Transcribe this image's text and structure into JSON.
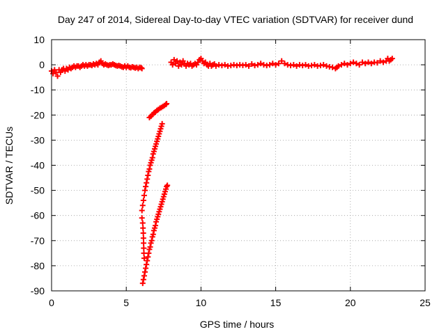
{
  "chart_data": {
    "type": "scatter",
    "title": "Day 247 of 2014, Sidereal Day-to-day VTEC variation (SDTVAR) for receiver dund",
    "xlabel": "GPS time / hours",
    "ylabel": "SDTVAR / TECUs",
    "xlim": [
      0,
      25
    ],
    "ylim": [
      -90,
      10
    ],
    "xticks": [
      "0",
      "5",
      "10",
      "15",
      "20",
      "25"
    ],
    "yticks": [
      "10",
      "0",
      "-10",
      "-20",
      "-30",
      "-40",
      "-50",
      "-60",
      "-70",
      "-80",
      "-90"
    ],
    "grid": true,
    "legend": "none",
    "marker": "plus",
    "marker_color": "#ff0000",
    "series": [
      {
        "values": [
          [
            0.0,
            -2.5
          ],
          [
            0.1,
            -3.5
          ],
          [
            0.2,
            -2.0
          ],
          [
            0.3,
            -3.0
          ],
          [
            0.4,
            -4.5
          ],
          [
            0.5,
            -2.0
          ],
          [
            0.6,
            -3.0
          ],
          [
            0.7,
            -2.0
          ],
          [
            0.8,
            -1.5
          ],
          [
            0.9,
            -2.5
          ],
          [
            1.0,
            -1.5
          ],
          [
            1.1,
            -2.0
          ],
          [
            1.2,
            -1.0
          ],
          [
            1.3,
            -1.5
          ],
          [
            1.4,
            -1.0
          ],
          [
            1.5,
            -0.5
          ],
          [
            1.6,
            -1.0
          ],
          [
            1.7,
            -0.5
          ],
          [
            1.8,
            -0.5
          ],
          [
            1.9,
            -1.0
          ],
          [
            2.0,
            -0.5
          ],
          [
            2.1,
            0.0
          ],
          [
            2.2,
            -0.5
          ],
          [
            2.3,
            0.0
          ],
          [
            2.4,
            -0.5
          ],
          [
            2.5,
            0.0
          ],
          [
            2.6,
            0.0
          ],
          [
            2.7,
            -0.3
          ],
          [
            2.8,
            0.3
          ],
          [
            2.9,
            0.0
          ],
          [
            3.0,
            0.5
          ],
          [
            3.1,
            0.0
          ],
          [
            3.2,
            1.0
          ],
          [
            3.3,
            1.5
          ],
          [
            3.4,
            0.5
          ],
          [
            3.5,
            0.0
          ],
          [
            3.6,
            0.3
          ],
          [
            3.7,
            0.0
          ],
          [
            3.8,
            -0.3
          ],
          [
            3.9,
            0.0
          ],
          [
            4.0,
            0.0
          ],
          [
            4.1,
            0.3
          ],
          [
            4.2,
            0.0
          ],
          [
            4.3,
            -0.3
          ],
          [
            4.4,
            -0.5
          ],
          [
            4.5,
            -0.3
          ],
          [
            4.6,
            -0.5
          ],
          [
            4.7,
            -0.8
          ],
          [
            4.8,
            -1.0
          ],
          [
            4.9,
            -0.5
          ],
          [
            5.0,
            -1.0
          ],
          [
            5.1,
            -0.5
          ],
          [
            5.2,
            -1.0
          ],
          [
            5.3,
            -1.2
          ],
          [
            5.4,
            -0.8
          ],
          [
            5.5,
            -1.0
          ],
          [
            5.6,
            -1.3
          ],
          [
            5.7,
            -1.0
          ],
          [
            5.8,
            -1.5
          ],
          [
            5.9,
            -1.0
          ],
          [
            6.0,
            -1.2
          ],
          [
            6.05,
            -1.5
          ]
        ]
      },
      {
        "values": [
          [
            6.55,
            -21.0
          ],
          [
            6.65,
            -20.5
          ],
          [
            6.75,
            -19.8
          ],
          [
            6.85,
            -19.2
          ],
          [
            6.95,
            -18.8
          ],
          [
            7.05,
            -18.2
          ],
          [
            7.15,
            -17.8
          ],
          [
            7.25,
            -17.3
          ],
          [
            7.35,
            -17.0
          ],
          [
            7.45,
            -16.6
          ],
          [
            7.55,
            -16.2
          ],
          [
            7.65,
            -15.8
          ],
          [
            7.7,
            -15.5
          ]
        ]
      },
      {
        "values": [
          [
            6.05,
            -58.0
          ],
          [
            6.1,
            -56.0
          ],
          [
            6.15,
            -54.0
          ],
          [
            6.2,
            -52.0
          ],
          [
            6.25,
            -50.0
          ],
          [
            6.3,
            -48.5
          ],
          [
            6.35,
            -47.0
          ],
          [
            6.4,
            -45.5
          ],
          [
            6.45,
            -44.0
          ],
          [
            6.5,
            -42.5
          ],
          [
            6.55,
            -41.5
          ],
          [
            6.6,
            -40.0
          ],
          [
            6.65,
            -39.0
          ],
          [
            6.7,
            -38.0
          ],
          [
            6.75,
            -37.0
          ],
          [
            6.8,
            -35.5
          ],
          [
            6.85,
            -34.5
          ],
          [
            6.9,
            -33.5
          ],
          [
            6.95,
            -32.5
          ],
          [
            7.0,
            -31.5
          ],
          [
            7.05,
            -30.5
          ],
          [
            7.1,
            -29.5
          ],
          [
            7.15,
            -28.5
          ],
          [
            7.2,
            -27.5
          ],
          [
            7.25,
            -26.5
          ],
          [
            7.3,
            -25.5
          ],
          [
            7.35,
            -24.5
          ],
          [
            7.4,
            -23.5
          ]
        ]
      },
      {
        "values": [
          [
            6.05,
            -61.0
          ],
          [
            6.1,
            -63.0
          ],
          [
            6.12,
            -65.0
          ],
          [
            6.14,
            -67.0
          ],
          [
            6.15,
            -69.0
          ],
          [
            6.16,
            -71.0
          ],
          [
            6.17,
            -73.0
          ],
          [
            6.18,
            -75.0
          ],
          [
            6.2,
            -77.0
          ]
        ]
      },
      {
        "values": [
          [
            6.1,
            -87.0
          ],
          [
            6.15,
            -85.5
          ],
          [
            6.2,
            -84.0
          ],
          [
            6.25,
            -82.5
          ],
          [
            6.3,
            -81.0
          ],
          [
            6.35,
            -79.5
          ],
          [
            6.4,
            -78.0
          ],
          [
            6.45,
            -76.5
          ],
          [
            6.5,
            -75.0
          ],
          [
            6.55,
            -73.5
          ],
          [
            6.6,
            -72.5
          ],
          [
            6.65,
            -71.0
          ],
          [
            6.7,
            -70.0
          ],
          [
            6.75,
            -68.5
          ],
          [
            6.8,
            -67.5
          ],
          [
            6.85,
            -66.0
          ],
          [
            6.9,
            -65.0
          ],
          [
            6.95,
            -64.0
          ],
          [
            7.0,
            -62.5
          ],
          [
            7.05,
            -61.5
          ],
          [
            7.1,
            -60.5
          ],
          [
            7.15,
            -59.5
          ],
          [
            7.2,
            -58.5
          ],
          [
            7.25,
            -57.5
          ],
          [
            7.3,
            -56.5
          ],
          [
            7.35,
            -55.5
          ],
          [
            7.4,
            -54.5
          ],
          [
            7.45,
            -53.5
          ],
          [
            7.5,
            -52.5
          ],
          [
            7.55,
            -51.5
          ],
          [
            7.6,
            -50.5
          ],
          [
            7.65,
            -49.5
          ],
          [
            7.7,
            -48.5
          ],
          [
            7.75,
            -48.0
          ]
        ]
      },
      {
        "values": [
          [
            8.0,
            1.0
          ],
          [
            8.1,
            0.0
          ],
          [
            8.2,
            2.0
          ],
          [
            8.3,
            0.5
          ],
          [
            8.4,
            1.5
          ],
          [
            8.5,
            -0.5
          ],
          [
            8.6,
            1.0
          ],
          [
            8.7,
            0.0
          ],
          [
            8.8,
            1.5
          ],
          [
            8.9,
            0.5
          ],
          [
            9.0,
            -0.5
          ],
          [
            9.1,
            0.5
          ],
          [
            9.2,
            0.0
          ],
          [
            9.3,
            0.5
          ],
          [
            9.4,
            -0.5
          ],
          [
            9.5,
            0.0
          ],
          [
            9.6,
            0.5
          ],
          [
            9.7,
            0.0
          ],
          [
            9.8,
            1.0
          ],
          [
            9.9,
            2.0
          ],
          [
            10.0,
            2.5
          ],
          [
            10.1,
            1.5
          ],
          [
            10.2,
            0.5
          ],
          [
            10.3,
            1.0
          ],
          [
            10.4,
            0.0
          ],
          [
            10.5,
            -0.5
          ],
          [
            10.6,
            0.5
          ],
          [
            10.7,
            -0.5
          ],
          [
            10.8,
            0.0
          ],
          [
            10.9,
            0.3
          ],
          [
            11.0,
            -0.5
          ],
          [
            11.2,
            0.0
          ],
          [
            11.4,
            -0.3
          ],
          [
            11.6,
            0.0
          ],
          [
            11.8,
            -0.5
          ],
          [
            12.0,
            -0.3
          ],
          [
            12.2,
            0.0
          ],
          [
            12.4,
            -0.3
          ],
          [
            12.6,
            0.0
          ],
          [
            12.8,
            -0.2
          ],
          [
            13.0,
            0.0
          ],
          [
            13.2,
            -0.5
          ],
          [
            13.4,
            0.3
          ],
          [
            13.6,
            -0.3
          ],
          [
            13.8,
            0.0
          ],
          [
            14.0,
            0.5
          ],
          [
            14.2,
            0.0
          ],
          [
            14.4,
            -0.3
          ],
          [
            14.6,
            0.0
          ],
          [
            14.8,
            0.5
          ],
          [
            15.0,
            0.0
          ],
          [
            15.2,
            0.5
          ],
          [
            15.4,
            1.5
          ],
          [
            15.6,
            0.5
          ],
          [
            15.8,
            0.0
          ],
          [
            16.0,
            -0.3
          ],
          [
            16.2,
            0.0
          ],
          [
            16.4,
            -0.5
          ],
          [
            16.6,
            0.0
          ],
          [
            16.8,
            -0.3
          ],
          [
            17.0,
            0.0
          ],
          [
            17.2,
            -0.5
          ],
          [
            17.4,
            -0.3
          ],
          [
            17.6,
            0.0
          ],
          [
            17.8,
            -0.5
          ],
          [
            18.0,
            -0.3
          ],
          [
            18.2,
            0.0
          ],
          [
            18.4,
            -0.5
          ],
          [
            18.6,
            -0.8
          ],
          [
            18.8,
            -1.0
          ],
          [
            19.0,
            -1.5
          ],
          [
            19.1,
            -1.0
          ],
          [
            19.2,
            -0.5
          ],
          [
            19.4,
            0.0
          ],
          [
            19.6,
            0.5
          ],
          [
            19.8,
            0.0
          ],
          [
            20.0,
            0.5
          ],
          [
            20.2,
            1.0
          ],
          [
            20.4,
            0.5
          ],
          [
            20.6,
            0.0
          ],
          [
            20.8,
            1.0
          ],
          [
            21.0,
            0.5
          ],
          [
            21.2,
            1.0
          ],
          [
            21.4,
            0.5
          ],
          [
            21.6,
            1.0
          ],
          [
            21.8,
            0.8
          ],
          [
            22.0,
            1.5
          ],
          [
            22.2,
            1.0
          ],
          [
            22.4,
            1.5
          ],
          [
            22.5,
            2.5
          ],
          [
            22.6,
            1.5
          ],
          [
            22.7,
            2.0
          ],
          [
            22.8,
            2.5
          ]
        ]
      }
    ]
  }
}
